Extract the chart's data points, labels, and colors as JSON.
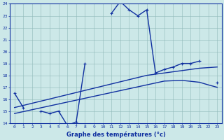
{
  "x_hours": [
    0,
    1,
    2,
    3,
    4,
    5,
    6,
    7,
    8,
    9,
    10,
    11,
    12,
    13,
    14,
    15,
    16,
    17,
    18,
    19,
    20,
    21,
    22,
    23
  ],
  "temp_line": [
    16.5,
    15.3,
    null,
    15.0,
    14.8,
    15.0,
    13.8,
    14.1,
    19.0,
    null,
    null,
    23.2,
    24.2,
    23.5,
    23.0,
    23.5,
    18.2,
    18.5,
    18.7,
    19.0,
    19.0,
    19.2,
    null,
    17.4
  ],
  "trend_upper": [
    15.3,
    15.48,
    15.66,
    15.84,
    16.02,
    16.2,
    16.38,
    16.56,
    16.74,
    16.92,
    17.1,
    17.28,
    17.46,
    17.64,
    17.82,
    18.0,
    18.1,
    18.2,
    18.3,
    18.4,
    18.5,
    18.6,
    18.65,
    18.7
  ],
  "trend_lower": [
    14.8,
    14.96,
    15.12,
    15.28,
    15.44,
    15.6,
    15.76,
    15.92,
    16.08,
    16.24,
    16.4,
    16.56,
    16.72,
    16.88,
    17.04,
    17.2,
    17.36,
    17.52,
    17.55,
    17.58,
    17.5,
    17.42,
    17.2,
    17.0
  ],
  "bg_color": "#cce8e8",
  "line_color": "#1030a0",
  "grid_color": "#90b8b8",
  "xlabel": "Graphe des températures (°c)",
  "ylim": [
    14,
    24
  ],
  "xlim": [
    -0.5,
    23.5
  ],
  "yticks": [
    14,
    15,
    16,
    17,
    18,
    19,
    20,
    21,
    22,
    23,
    24
  ],
  "xticks": [
    0,
    1,
    2,
    3,
    4,
    5,
    6,
    7,
    8,
    9,
    10,
    11,
    12,
    13,
    14,
    15,
    16,
    17,
    18,
    19,
    20,
    21,
    22,
    23
  ],
  "tick_fontsize": 4.5,
  "xlabel_fontsize": 6.0
}
